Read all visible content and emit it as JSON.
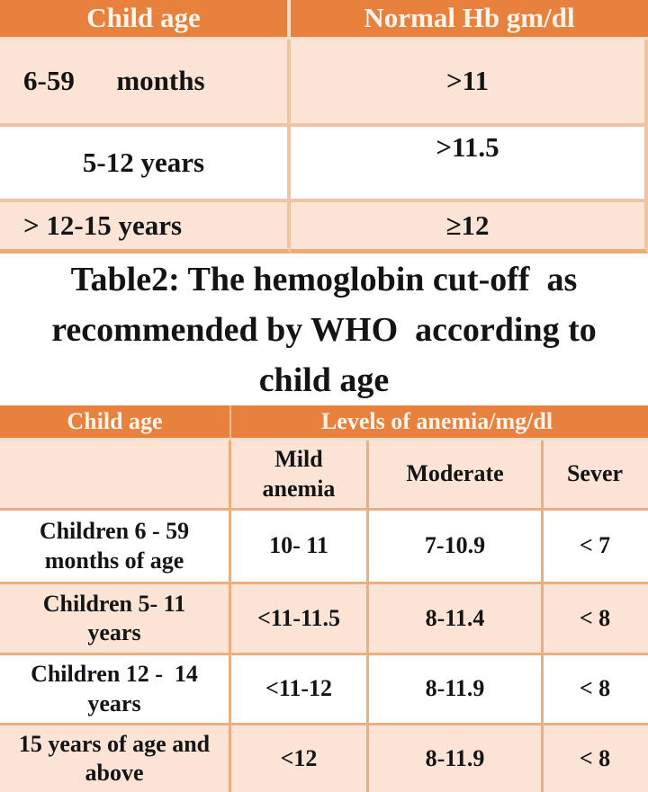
{
  "colors": {
    "accent": "#E8813E",
    "row_light": "#FBE4D5",
    "border1": "#F0C4A3",
    "border2": "#ECAE7E",
    "header_text": "#FDF4EB",
    "text": "#141414",
    "table_bottom": "#ECAB76"
  },
  "table1": {
    "col_headers": [
      "Child age",
      "Normal Hb gm/dl"
    ],
    "rows": [
      {
        "age": "6-59      months",
        "value": ">11"
      },
      {
        "age": "5-12 years",
        "value": ">11.5"
      },
      {
        "age": "> 12-15 years",
        "value": "≥12"
      }
    ]
  },
  "caption": {
    "lines": [
      "Table2: The hemoglobin cut-off  as",
      "recommended by WHO  according to",
      "child age"
    ]
  },
  "table2": {
    "col1_header": "Child age",
    "span_header": "Levels of anemia/mg/dl",
    "subheaders": {
      "mild_line1": "Mild",
      "mild_line2": "anemia",
      "moderate": "Moderate",
      "severe": "Sever"
    },
    "rows": [
      {
        "age_line1": "Children 6 - 59",
        "age_line2": "months of age",
        "mild": "10- 11",
        "moderate": "7-10.9",
        "severe": "< 7"
      },
      {
        "age_line1": "Children 5- 11",
        "age_line2": "years",
        "mild": "<11-11.5",
        "moderate": "8-11.4",
        "severe": "< 8"
      },
      {
        "age_line1": "Children 12 -  14",
        "age_line2": "years",
        "mild": "<11-12",
        "moderate": "8-11.9",
        "severe": "< 8"
      },
      {
        "age_line1": "15 years of age and",
        "age_line2": "above",
        "mild": "<12",
        "moderate": "8-11.9",
        "severe": "< 8"
      }
    ]
  }
}
